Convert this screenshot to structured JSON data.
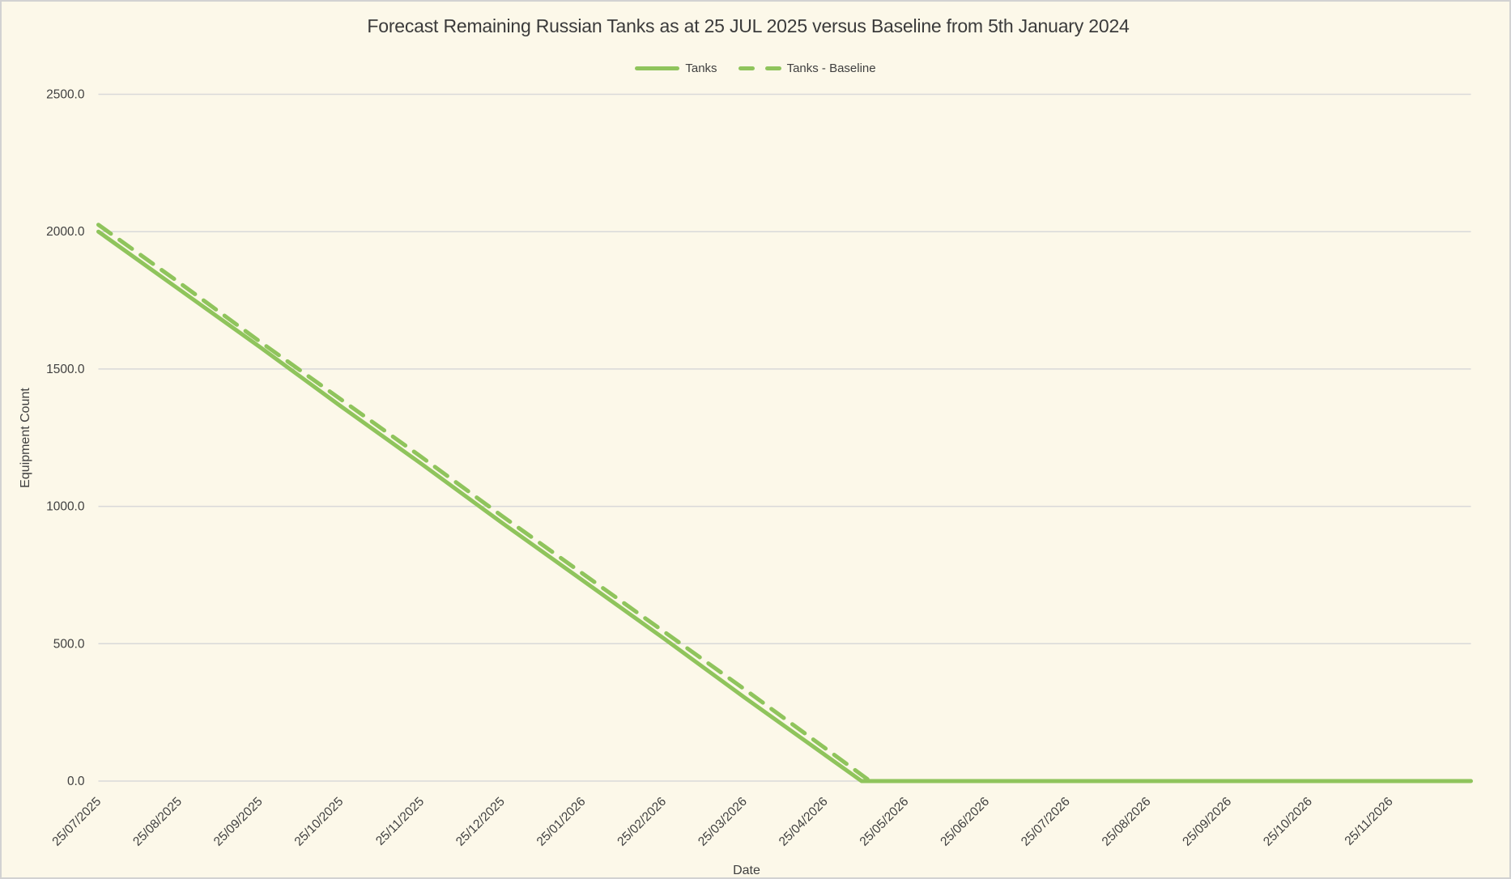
{
  "chart_data": {
    "type": "line",
    "title": "Forecast Remaining Russian Tanks as at 25 JUL 2025 versus Baseline from 5th January 2024",
    "xlabel": "Date",
    "ylabel": "Equipment Count",
    "ylim": [
      0,
      2500
    ],
    "ytick_labels": [
      "0.0",
      "500.0",
      "1000.0",
      "1500.0",
      "2000.0",
      "2500.0"
    ],
    "grid": "horizontal",
    "legend_position": "top-center",
    "line_color": "#8FC45C",
    "background_color": "#FCF8E9",
    "gridline_color": "#D9D9D9",
    "categories": [
      "25/07/2025",
      "25/08/2025",
      "25/09/2025",
      "25/10/2025",
      "25/11/2025",
      "25/12/2025",
      "25/01/2026",
      "25/02/2026",
      "25/03/2026",
      "25/04/2026",
      "25/05/2026",
      "25/06/2026",
      "25/07/2026",
      "25/08/2026",
      "25/09/2026",
      "25/10/2026",
      "25/11/2026"
    ],
    "series": [
      {
        "name": "Tanks",
        "style": "solid",
        "values": [
          2000,
          1790,
          1580,
          1365,
          1155,
          940,
          730,
          520,
          305,
          95,
          0,
          0,
          0,
          0,
          0,
          0,
          0
        ]
      },
      {
        "name": "Tanks - Baseline",
        "style": "dashed",
        "values": [
          2025,
          1815,
          1600,
          1390,
          1180,
          965,
          755,
          545,
          335,
          120,
          0,
          0,
          0,
          0,
          0,
          0,
          0
        ]
      }
    ],
    "extend_flat_to_right_edge": true
  }
}
